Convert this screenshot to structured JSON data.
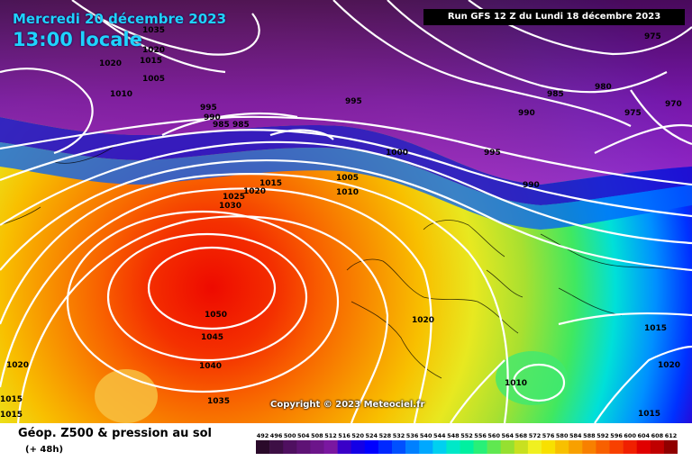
{
  "header": {
    "date": "Mercredi 20 décembre 2023",
    "time": "13:00 locale",
    "run": "Run GFS 12 Z du Lundi 18 décembre 2023"
  },
  "copyright": "Copyright © 2023 Meteociel.fr",
  "legend": {
    "title": "Géop. Z500 & pression au sol",
    "subtitle": "(+ 48h)",
    "scale_values": [
      "492",
      "496",
      "500",
      "504",
      "508",
      "512",
      "516",
      "520",
      "524",
      "528",
      "532",
      "536",
      "540",
      "544",
      "548",
      "552",
      "556",
      "560",
      "564",
      "568",
      "572",
      "576",
      "580",
      "584",
      "588",
      "592",
      "596",
      "600",
      "604",
      "608",
      "612"
    ],
    "scale_colors": [
      "#2a0a2a",
      "#3d0f45",
      "#4f1060",
      "#5e1375",
      "#6c158a",
      "#7a17a0",
      "#3a00c8",
      "#1400e6",
      "#0000ff",
      "#0028ff",
      "#0050ff",
      "#0080ff",
      "#00a8ff",
      "#00d0f0",
      "#00e8c8",
      "#00f0a0",
      "#28f078",
      "#60e850",
      "#96e030",
      "#c8e020",
      "#f0f020",
      "#f8e000",
      "#f8c000",
      "#f8a000",
      "#f88000",
      "#f86000",
      "#f84000",
      "#f02000",
      "#e00000",
      "#c00000",
      "#900000"
    ]
  },
  "isobar_labels": [
    {
      "text": "1035",
      "color": "white"
    },
    {
      "text": "1020",
      "color": "white"
    },
    {
      "text": "1015",
      "color": "white"
    },
    {
      "text": "1020",
      "color": "white"
    },
    {
      "text": "1005",
      "color": "white"
    },
    {
      "text": "1010",
      "color": "white"
    },
    {
      "text": "995",
      "color": "white"
    },
    {
      "text": "990",
      "color": "white"
    },
    {
      "text": "985",
      "color": "white"
    },
    {
      "text": "985",
      "color": "white"
    },
    {
      "text": "995",
      "color": "white"
    },
    {
      "text": "985",
      "color": "white"
    },
    {
      "text": "990",
      "color": "white"
    },
    {
      "text": "980",
      "color": "white"
    },
    {
      "text": "975",
      "color": "white"
    },
    {
      "text": "975",
      "color": "white"
    },
    {
      "text": "970",
      "color": "white"
    },
    {
      "text": "1000",
      "color": "white"
    },
    {
      "text": "995",
      "color": "white"
    },
    {
      "text": "990",
      "color": "white"
    },
    {
      "text": "1005",
      "color": "white"
    },
    {
      "text": "1010",
      "color": "white"
    },
    {
      "text": "1015",
      "color": "white"
    },
    {
      "text": "1020",
      "color": "white"
    },
    {
      "text": "1025",
      "color": "white"
    },
    {
      "text": "1030",
      "color": "white"
    },
    {
      "text": "1050",
      "color": "white"
    },
    {
      "text": "1045",
      "color": "white"
    },
    {
      "text": "1040",
      "color": "white"
    },
    {
      "text": "1035",
      "color": "white"
    },
    {
      "text": "1020",
      "color": "white"
    },
    {
      "text": "1015",
      "color": "white"
    },
    {
      "text": "1015",
      "color": "white"
    },
    {
      "text": "1020",
      "color": "white"
    },
    {
      "text": "1010",
      "color": "white"
    },
    {
      "text": "1015",
      "color": "white"
    },
    {
      "text": "1020",
      "color": "white"
    },
    {
      "text": "1015",
      "color": "white"
    }
  ]
}
